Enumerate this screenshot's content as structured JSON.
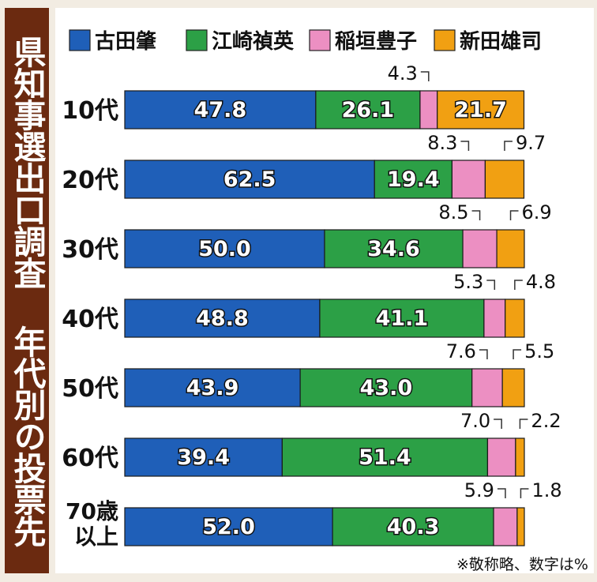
{
  "title": "県知事選出口調査 年代別の投票先",
  "chart_data": {
    "type": "bar",
    "stacked": true,
    "orientation": "horizontal",
    "title": "県知事選出口調査 年代別の投票先",
    "note": "※敬称略、数字は%",
    "legend_position": "top",
    "categories": [
      "10代",
      "20代",
      "30代",
      "40代",
      "50代",
      "60代",
      "70歳以上"
    ],
    "xlim": [
      0,
      100
    ],
    "series": [
      {
        "name": "古田肇",
        "color": "#1f5fb8",
        "values": [
          47.8,
          62.5,
          50.0,
          48.8,
          43.9,
          39.4,
          52.0
        ]
      },
      {
        "name": "江崎禎英",
        "color": "#2ca046",
        "values": [
          26.1,
          19.4,
          34.6,
          41.1,
          43.0,
          51.4,
          40.3
        ]
      },
      {
        "name": "稲垣豊子",
        "color": "#ec8fc2",
        "values": [
          4.3,
          8.3,
          8.5,
          5.3,
          7.6,
          7.0,
          5.9
        ]
      },
      {
        "name": "新田雄司",
        "color": "#f1a012",
        "values": [
          21.7,
          9.7,
          6.9,
          4.8,
          5.5,
          2.2,
          1.8
        ]
      }
    ],
    "value_labels": [
      [
        "47.8",
        "26.1",
        "4.3",
        "21.7"
      ],
      [
        "62.5",
        "19.4",
        "8.3",
        "9.7"
      ],
      [
        "50.0",
        "34.6",
        "8.5",
        "6.9"
      ],
      [
        "48.8",
        "41.1",
        "5.3",
        "4.8"
      ],
      [
        "43.9",
        "43.0",
        "7.6",
        "5.5"
      ],
      [
        "39.4",
        "51.4",
        "7.0",
        "2.2"
      ],
      [
        "52.0",
        "40.3",
        "5.9",
        "1.8"
      ]
    ],
    "category_label_lines": [
      [
        "10代"
      ],
      [
        "20代"
      ],
      [
        "30代"
      ],
      [
        "40代"
      ],
      [
        "50代"
      ],
      [
        "60代"
      ],
      [
        "70歳",
        "以上"
      ]
    ]
  }
}
